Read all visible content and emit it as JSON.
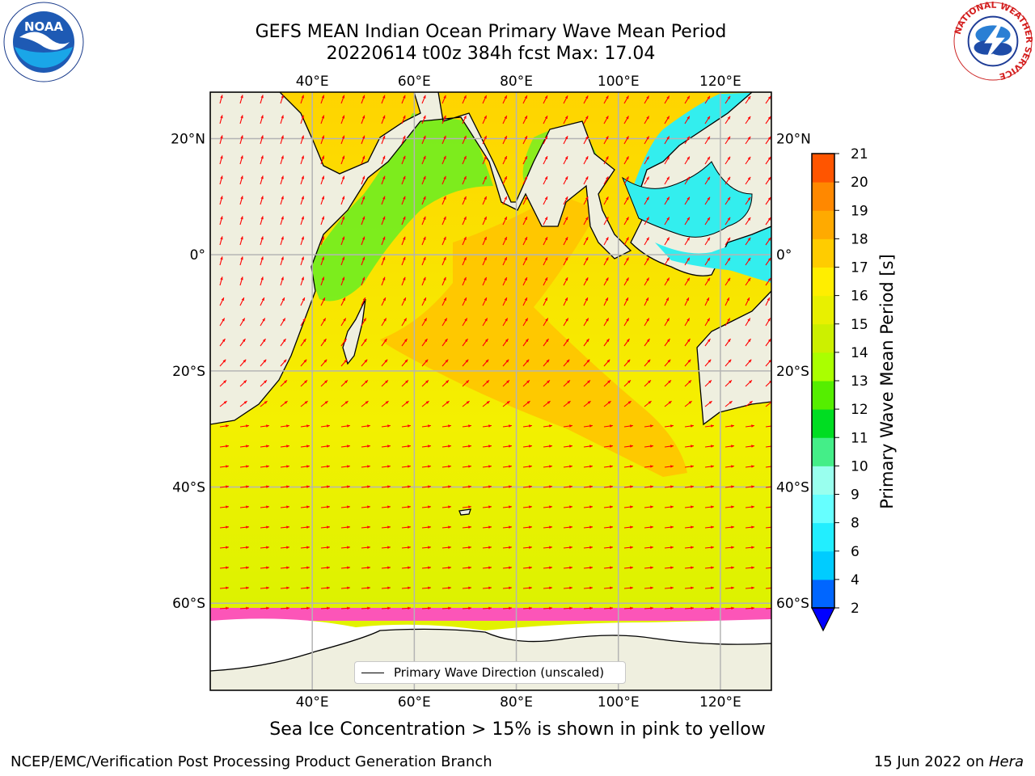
{
  "header": {
    "title_line1": "GEFS MEAN Indian Ocean Primary Wave Mean Period",
    "title_line2": "20220614 t00z 384h fcst   Max: 17.04"
  },
  "logos": {
    "left": {
      "icon": "noaa-logo",
      "text": "NOAA"
    },
    "right": {
      "icon": "nws-logo",
      "text": "NATIONAL WEATHER SERVICE"
    }
  },
  "map": {
    "projection": "cylindrical",
    "lon_range": [
      20,
      130
    ],
    "lat_range": [
      -75,
      28
    ],
    "lon_ticks": [
      {
        "value": 40,
        "label": "40°E"
      },
      {
        "value": 60,
        "label": "60°E"
      },
      {
        "value": 80,
        "label": "80°E"
      },
      {
        "value": 100,
        "label": "100°E"
      },
      {
        "value": 120,
        "label": "120°E"
      }
    ],
    "lat_ticks": [
      {
        "value": 20,
        "label": "20°N"
      },
      {
        "value": 0,
        "label": "0°"
      },
      {
        "value": -20,
        "label": "20°S"
      },
      {
        "value": -40,
        "label": "40°S"
      },
      {
        "value": -60,
        "label": "60°S"
      }
    ],
    "gridlines": true,
    "land_color": "#efefdf",
    "ice_edge_lat": -65,
    "legend": {
      "label": "Primary Wave Direction (unscaled)",
      "arrow_color": "#ff0000",
      "placement": "bottom-center"
    }
  },
  "colorbar": {
    "label": "Primary Wave Mean Period [s]",
    "ticks": [
      "2",
      "4",
      "6",
      "8",
      "9",
      "10",
      "11",
      "12",
      "13",
      "14",
      "15",
      "16",
      "17",
      "18",
      "19",
      "20",
      "21"
    ],
    "colors": [
      "#0066ff",
      "#00ccff",
      "#22eeff",
      "#66ffff",
      "#99ffee",
      "#44ee88",
      "#00dd22",
      "#55ee00",
      "#aaff00",
      "#ccf000",
      "#e8f000",
      "#ffee00",
      "#ffcc00",
      "#ffaa00",
      "#ff8800",
      "#ff5500",
      "#ff2200",
      "#ff0000"
    ],
    "under_color": "#0000ff",
    "extend": "min"
  },
  "caption": "Sea Ice Concentration > 15% is shown in pink to yellow",
  "footer": {
    "left": "NCEP/EMC/Verification Post Processing Product Generation Branch",
    "right_date": "15 Jun 2022 on ",
    "right_host": "Hera"
  }
}
